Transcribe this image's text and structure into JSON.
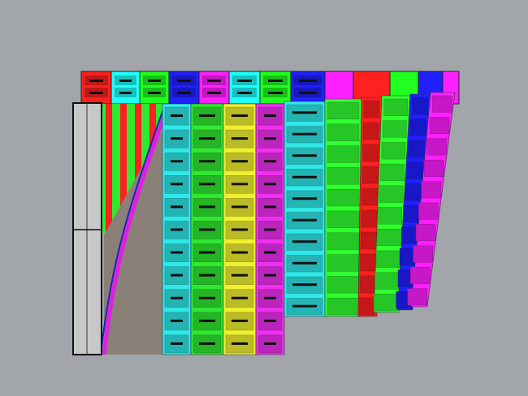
{
  "viewport": {
    "background": "#a2a6aa",
    "back_row_colors": [
      "#ff2020",
      "#20ffff",
      "#20ff20",
      "#2020ff",
      "#ff20ff",
      "#20ffff",
      "#20ff20",
      "#2020ff",
      "#ff20ff",
      "#ff2020",
      "#20ff20",
      "#2020ff",
      "#ff20ff"
    ],
    "front_column_colors": [
      "#30e8e8",
      "#30e830",
      "#f0f030",
      "#f030f0",
      "#30e8e8",
      "#30ff30",
      "#ff2020",
      "#30ff30",
      "#2020ff",
      "#ff20ff"
    ],
    "slab_color": "#c8c8c8",
    "shadow_color": "#8a8078"
  }
}
